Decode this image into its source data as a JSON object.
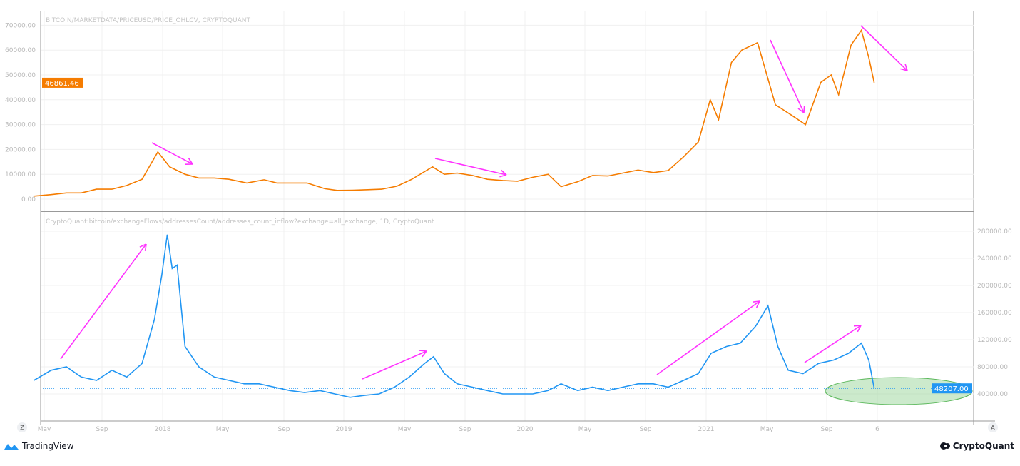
{
  "chart_data": [
    {
      "type": "line",
      "title": "BITCOIN/MARKETDATA/PRICEUSD/PRICE_OHLCV, CRYPTOQUANT",
      "y_ticks": [
        "0.00",
        "10000.00",
        "20000.00",
        "30000.00",
        "40000.00",
        "50000.00",
        "60000.00",
        "70000.00"
      ],
      "ylim": [
        0,
        75000
      ],
      "last_value_label": "46861.46",
      "color": "#f57c00",
      "series": [
        {
          "x": [
            "2017-04-10",
            "2017-05-15",
            "2017-06-15",
            "2017-07-15",
            "2017-08-15",
            "2017-09-15",
            "2017-10-15",
            "2017-11-15",
            "2017-12-17",
            "2018-01-10",
            "2018-02-10",
            "2018-03-10",
            "2018-04-10",
            "2018-05-10",
            "2018-06-15",
            "2018-07-20",
            "2018-08-15",
            "2018-09-15",
            "2018-10-15",
            "2018-11-20",
            "2018-12-15",
            "2019-01-15",
            "2019-02-15",
            "2019-03-15",
            "2019-04-15",
            "2019-05-15",
            "2019-06-26",
            "2019-07-20",
            "2019-08-15",
            "2019-09-15",
            "2019-10-15",
            "2019-11-15",
            "2019-12-15",
            "2020-01-15",
            "2020-02-15",
            "2020-03-12",
            "2020-04-15",
            "2020-05-15",
            "2020-06-15",
            "2020-07-15",
            "2020-08-15",
            "2020-09-15",
            "2020-10-15",
            "2020-11-15",
            "2020-12-15",
            "2021-01-08",
            "2021-01-25",
            "2021-02-20",
            "2021-03-13",
            "2021-04-14",
            "2021-05-20",
            "2021-06-20",
            "2021-07-20",
            "2021-08-20",
            "2021-09-10",
            "2021-09-25",
            "2021-10-20",
            "2021-11-10",
            "2021-11-25",
            "2021-12-06"
          ],
          "y": [
            1200,
            1800,
            2500,
            2500,
            4000,
            4000,
            5500,
            8000,
            19000,
            13000,
            10000,
            8500,
            8500,
            8000,
            6500,
            7800,
            6500,
            6500,
            6500,
            4200,
            3500,
            3600,
            3800,
            4000,
            5200,
            8000,
            13000,
            10000,
            10500,
            9500,
            8000,
            7500,
            7200,
            8800,
            10000,
            5000,
            7000,
            9500,
            9300,
            10500,
            11700,
            10700,
            11500,
            17000,
            23000,
            40000,
            32000,
            55000,
            60000,
            63000,
            38000,
            34000,
            30000,
            47000,
            50000,
            42000,
            62000,
            68000,
            57000,
            46861.46
          ]
        }
      ]
    },
    {
      "type": "line",
      "title": "CryptoQuant:bitcoin/exchangeFlows/addressesCount/addresses_count_inflow?exchange=all_exchange, 1D, CryptoQuant",
      "y_ticks": [
        "40000.00",
        "80000.00",
        "120000.00",
        "160000.00",
        "200000.00",
        "240000.00",
        "280000.00"
      ],
      "ylim": [
        0,
        290000
      ],
      "last_value_label": "48207.00",
      "color": "#2196f3",
      "series": [
        {
          "x": [
            "2017-04-10",
            "2017-05-15",
            "2017-06-15",
            "2017-07-15",
            "2017-08-15",
            "2017-09-15",
            "2017-10-15",
            "2017-11-15",
            "2017-12-10",
            "2017-12-25",
            "2018-01-05",
            "2018-01-15",
            "2018-01-25",
            "2018-02-10",
            "2018-03-10",
            "2018-04-10",
            "2018-05-10",
            "2018-06-10",
            "2018-07-10",
            "2018-08-10",
            "2018-09-10",
            "2018-10-10",
            "2018-11-10",
            "2018-12-10",
            "2019-01-10",
            "2019-02-10",
            "2019-03-10",
            "2019-04-10",
            "2019-05-10",
            "2019-06-10",
            "2019-06-28",
            "2019-07-20",
            "2019-08-15",
            "2019-09-15",
            "2019-10-15",
            "2019-11-15",
            "2019-12-15",
            "2020-01-15",
            "2020-02-15",
            "2020-03-12",
            "2020-04-15",
            "2020-05-15",
            "2020-06-15",
            "2020-07-15",
            "2020-08-15",
            "2020-09-15",
            "2020-10-15",
            "2020-11-15",
            "2020-12-15",
            "2021-01-10",
            "2021-02-10",
            "2021-03-10",
            "2021-04-10",
            "2021-05-05",
            "2021-05-25",
            "2021-06-15",
            "2021-07-15",
            "2021-08-15",
            "2021-09-15",
            "2021-10-15",
            "2021-11-10",
            "2021-11-25",
            "2021-12-06"
          ],
          "y": [
            60000,
            75000,
            80000,
            65000,
            60000,
            75000,
            65000,
            85000,
            150000,
            215000,
            275000,
            225000,
            230000,
            110000,
            80000,
            65000,
            60000,
            55000,
            55000,
            50000,
            45000,
            42000,
            45000,
            40000,
            35000,
            38000,
            40000,
            50000,
            65000,
            85000,
            95000,
            70000,
            55000,
            50000,
            45000,
            40000,
            40000,
            40000,
            45000,
            55000,
            45000,
            50000,
            45000,
            50000,
            55000,
            55000,
            50000,
            60000,
            70000,
            100000,
            110000,
            115000,
            140000,
            170000,
            110000,
            75000,
            70000,
            85000,
            90000,
            100000,
            115000,
            90000,
            48207
          ]
        }
      ]
    }
  ],
  "x_axis": {
    "ticks": [
      "May",
      "Sep",
      "2018",
      "May",
      "Sep",
      "2019",
      "May",
      "Sep",
      "2020",
      "May",
      "Sep",
      "2021",
      "May",
      "Sep",
      "6"
    ]
  },
  "controls": {
    "left_button": "Z",
    "right_button": "A"
  },
  "branding": {
    "left": "TradingView",
    "right": "CryptoQuant"
  },
  "annotation_color": "#ff33ff",
  "highlight_color": "#8fd18f"
}
